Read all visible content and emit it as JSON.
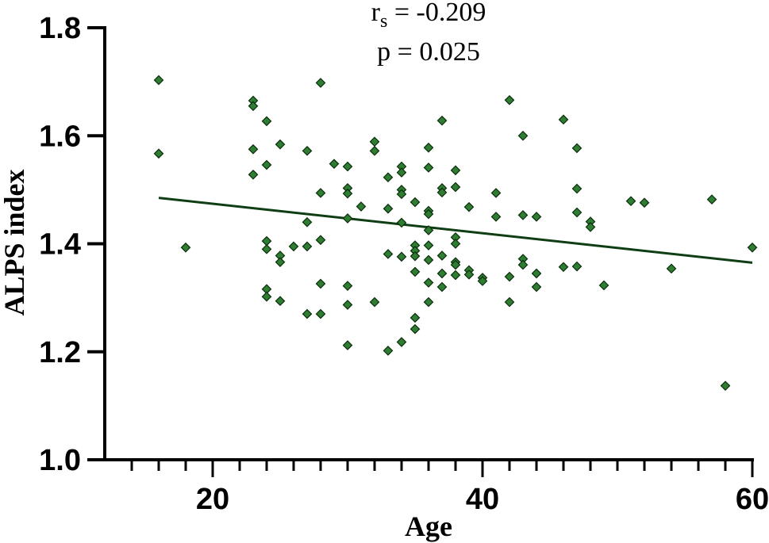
{
  "chart_data": {
    "type": "scatter",
    "title": "",
    "xlabel": "Age",
    "ylabel": "ALPS index",
    "xlim": [
      12,
      60
    ],
    "ylim": [
      1.0,
      1.8
    ],
    "x_ticks": [
      "20",
      "40",
      "60"
    ],
    "y_ticks": [
      "1.0",
      "1.2",
      "1.4",
      "1.6",
      "1.8"
    ],
    "grid": false,
    "legend": "none",
    "annotation": {
      "rs_prefix": "r",
      "rs_sub": "s",
      "rs_value": " = -0.209",
      "p_text": "p = 0.025"
    },
    "marker_color": "#2e7d32",
    "marker_edge": "#0b2e0b",
    "line_color": "#0f3d14",
    "trend_line": {
      "x": [
        16,
        60
      ],
      "y": [
        1.485,
        1.365
      ]
    },
    "points": [
      {
        "x": 16,
        "y": 1.703
      },
      {
        "x": 16,
        "y": 1.567
      },
      {
        "x": 18,
        "y": 1.393
      },
      {
        "x": 23,
        "y": 1.665
      },
      {
        "x": 23,
        "y": 1.655
      },
      {
        "x": 23,
        "y": 1.575
      },
      {
        "x": 23,
        "y": 1.528
      },
      {
        "x": 24,
        "y": 1.627
      },
      {
        "x": 24,
        "y": 1.546
      },
      {
        "x": 24,
        "y": 1.405
      },
      {
        "x": 24,
        "y": 1.39
      },
      {
        "x": 24,
        "y": 1.316
      },
      {
        "x": 24,
        "y": 1.302
      },
      {
        "x": 25,
        "y": 1.584
      },
      {
        "x": 25,
        "y": 1.378
      },
      {
        "x": 25,
        "y": 1.366
      },
      {
        "x": 25,
        "y": 1.294
      },
      {
        "x": 26,
        "y": 1.395
      },
      {
        "x": 27,
        "y": 1.572
      },
      {
        "x": 27,
        "y": 1.44
      },
      {
        "x": 27,
        "y": 1.395
      },
      {
        "x": 27,
        "y": 1.27
      },
      {
        "x": 28,
        "y": 1.698
      },
      {
        "x": 28,
        "y": 1.494
      },
      {
        "x": 28,
        "y": 1.407
      },
      {
        "x": 28,
        "y": 1.326
      },
      {
        "x": 28,
        "y": 1.27
      },
      {
        "x": 29,
        "y": 1.548
      },
      {
        "x": 30,
        "y": 1.543
      },
      {
        "x": 30,
        "y": 1.503
      },
      {
        "x": 30,
        "y": 1.493
      },
      {
        "x": 30,
        "y": 1.447
      },
      {
        "x": 30,
        "y": 1.322
      },
      {
        "x": 30,
        "y": 1.287
      },
      {
        "x": 30,
        "y": 1.212
      },
      {
        "x": 31,
        "y": 1.469
      },
      {
        "x": 32,
        "y": 1.589
      },
      {
        "x": 32,
        "y": 1.572
      },
      {
        "x": 32,
        "y": 1.292
      },
      {
        "x": 33,
        "y": 1.523
      },
      {
        "x": 33,
        "y": 1.465
      },
      {
        "x": 33,
        "y": 1.381
      },
      {
        "x": 33,
        "y": 1.202
      },
      {
        "x": 34,
        "y": 1.543
      },
      {
        "x": 34,
        "y": 1.532
      },
      {
        "x": 34,
        "y": 1.5
      },
      {
        "x": 34,
        "y": 1.492
      },
      {
        "x": 34,
        "y": 1.439
      },
      {
        "x": 34,
        "y": 1.376
      },
      {
        "x": 34,
        "y": 1.218
      },
      {
        "x": 35,
        "y": 1.477
      },
      {
        "x": 35,
        "y": 1.397
      },
      {
        "x": 35,
        "y": 1.387
      },
      {
        "x": 35,
        "y": 1.377
      },
      {
        "x": 35,
        "y": 1.348
      },
      {
        "x": 35,
        "y": 1.263
      },
      {
        "x": 35,
        "y": 1.242
      },
      {
        "x": 36,
        "y": 1.578
      },
      {
        "x": 36,
        "y": 1.541
      },
      {
        "x": 36,
        "y": 1.461
      },
      {
        "x": 36,
        "y": 1.455
      },
      {
        "x": 36,
        "y": 1.425
      },
      {
        "x": 36,
        "y": 1.397
      },
      {
        "x": 36,
        "y": 1.37
      },
      {
        "x": 36,
        "y": 1.328
      },
      {
        "x": 36,
        "y": 1.292
      },
      {
        "x": 37,
        "y": 1.628
      },
      {
        "x": 37,
        "y": 1.503
      },
      {
        "x": 37,
        "y": 1.495
      },
      {
        "x": 37,
        "y": 1.378
      },
      {
        "x": 37,
        "y": 1.345
      },
      {
        "x": 37,
        "y": 1.32
      },
      {
        "x": 38,
        "y": 1.536
      },
      {
        "x": 38,
        "y": 1.505
      },
      {
        "x": 38,
        "y": 1.412
      },
      {
        "x": 38,
        "y": 1.4
      },
      {
        "x": 38,
        "y": 1.366
      },
      {
        "x": 38,
        "y": 1.361
      },
      {
        "x": 38,
        "y": 1.342
      },
      {
        "x": 39,
        "y": 1.468
      },
      {
        "x": 39,
        "y": 1.351
      },
      {
        "x": 39,
        "y": 1.343
      },
      {
        "x": 40,
        "y": 1.337
      },
      {
        "x": 40,
        "y": 1.331
      },
      {
        "x": 41,
        "y": 1.494
      },
      {
        "x": 41,
        "y": 1.45
      },
      {
        "x": 42,
        "y": 1.666
      },
      {
        "x": 42,
        "y": 1.339
      },
      {
        "x": 42,
        "y": 1.292
      },
      {
        "x": 43,
        "y": 1.6
      },
      {
        "x": 43,
        "y": 1.453
      },
      {
        "x": 43,
        "y": 1.372
      },
      {
        "x": 43,
        "y": 1.361
      },
      {
        "x": 44,
        "y": 1.45
      },
      {
        "x": 44,
        "y": 1.345
      },
      {
        "x": 44,
        "y": 1.32
      },
      {
        "x": 46,
        "y": 1.63
      },
      {
        "x": 46,
        "y": 1.357
      },
      {
        "x": 47,
        "y": 1.577
      },
      {
        "x": 47,
        "y": 1.502
      },
      {
        "x": 47,
        "y": 1.458
      },
      {
        "x": 47,
        "y": 1.358
      },
      {
        "x": 48,
        "y": 1.441
      },
      {
        "x": 48,
        "y": 1.431
      },
      {
        "x": 49,
        "y": 1.323
      },
      {
        "x": 51,
        "y": 1.479
      },
      {
        "x": 52,
        "y": 1.476
      },
      {
        "x": 54,
        "y": 1.354
      },
      {
        "x": 57,
        "y": 1.482
      },
      {
        "x": 58,
        "y": 1.137
      },
      {
        "x": 60,
        "y": 1.393
      }
    ]
  }
}
